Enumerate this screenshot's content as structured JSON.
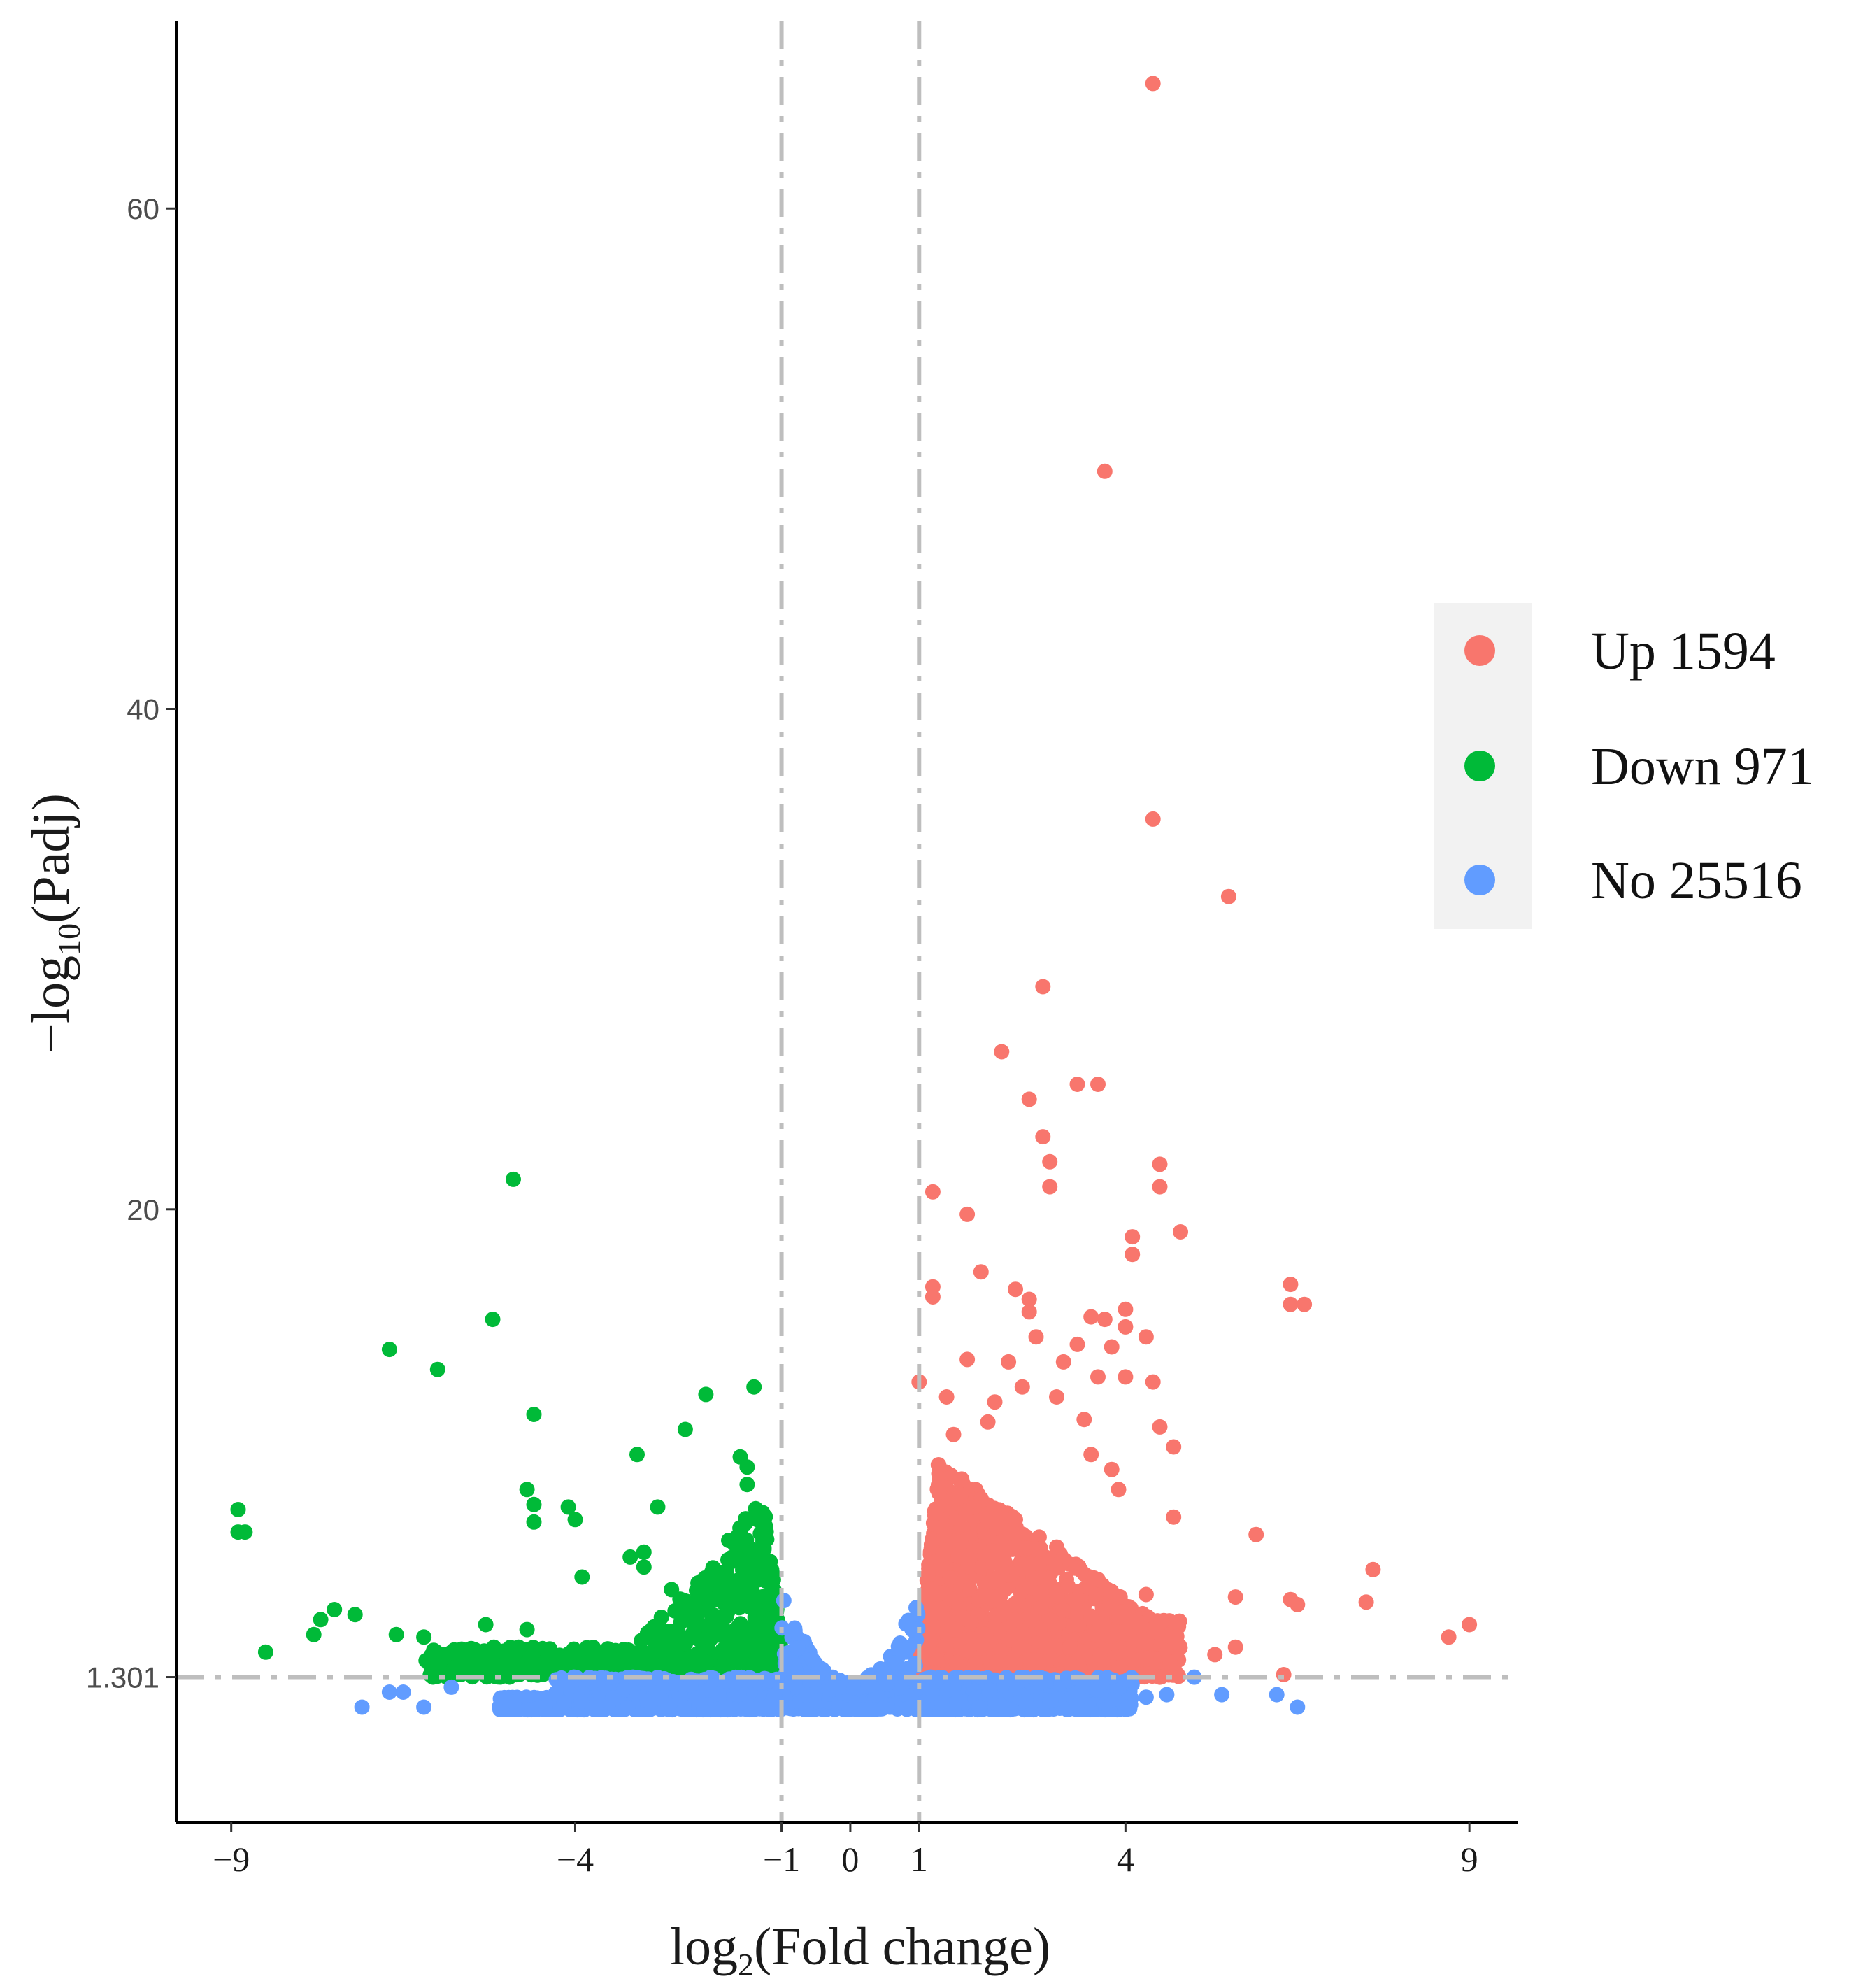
{
  "chart_data": {
    "type": "scatter",
    "title": "",
    "xlabel": {
      "main": "log",
      "sub": "2",
      "rest": "(Fold change)"
    },
    "ylabel": {
      "main": "−log",
      "sub": "10",
      "rest": "(Padj)"
    },
    "xlim": [
      -9.8,
      9.7
    ],
    "ylim": [
      -4.5,
      67.5
    ],
    "x_ticks": [
      {
        "value": -9,
        "label": "−9"
      },
      {
        "value": -4,
        "label": "−4"
      },
      {
        "value": -1,
        "label": "−1"
      },
      {
        "value": 0,
        "label": "0"
      },
      {
        "value": 1,
        "label": "1"
      },
      {
        "value": 4,
        "label": "4"
      },
      {
        "value": 9,
        "label": "9"
      }
    ],
    "y_ticks": [
      {
        "value": 1.301,
        "label": "1.301"
      },
      {
        "value": 20,
        "label": "20"
      },
      {
        "value": 40,
        "label": "40"
      },
      {
        "value": 60,
        "label": "60"
      }
    ],
    "thresholds": {
      "x": [
        -1,
        1
      ],
      "y": 1.301
    },
    "grid": false,
    "legend": {
      "position": "right",
      "entries": [
        {
          "name": "Up",
          "count": "1594",
          "label": "Up 1594",
          "color": "#F8766D"
        },
        {
          "name": "Down",
          "count": "971",
          "label": "Down 971",
          "color": "#00BA38"
        },
        {
          "name": "No",
          "count": "25516",
          "label": "No 25516",
          "color": "#619CFF"
        }
      ]
    },
    "series": [
      {
        "name": "Up",
        "color": "#F8766D",
        "points": [
          [
            4.4,
            65.0
          ],
          [
            3.7,
            49.5
          ],
          [
            4.4,
            35.6
          ],
          [
            5.5,
            32.5
          ],
          [
            2.8,
            28.9
          ],
          [
            2.2,
            26.3
          ],
          [
            2.6,
            24.4
          ],
          [
            3.3,
            25.0
          ],
          [
            3.6,
            25.0
          ],
          [
            2.8,
            22.9
          ],
          [
            2.9,
            21.9
          ],
          [
            4.5,
            21.8
          ],
          [
            2.9,
            20.9
          ],
          [
            4.5,
            20.9
          ],
          [
            1.2,
            20.7
          ],
          [
            1.7,
            19.8
          ],
          [
            4.1,
            18.9
          ],
          [
            4.8,
            19.1
          ],
          [
            4.1,
            18.2
          ],
          [
            1.9,
            17.5
          ],
          [
            6.4,
            17.0
          ],
          [
            6.4,
            16.2
          ],
          [
            6.6,
            16.2
          ],
          [
            1.2,
            16.9
          ],
          [
            1.2,
            16.5
          ],
          [
            2.4,
            16.8
          ],
          [
            2.6,
            16.4
          ],
          [
            2.6,
            15.9
          ],
          [
            3.5,
            15.7
          ],
          [
            3.7,
            15.6
          ],
          [
            4.0,
            16.0
          ],
          [
            4.0,
            15.3
          ],
          [
            4.3,
            14.9
          ],
          [
            2.7,
            14.9
          ],
          [
            3.3,
            14.6
          ],
          [
            3.8,
            14.5
          ],
          [
            1.7,
            14.0
          ],
          [
            2.3,
            13.9
          ],
          [
            3.1,
            13.9
          ],
          [
            3.6,
            13.3
          ],
          [
            4.0,
            13.3
          ],
          [
            4.4,
            13.1
          ],
          [
            2.5,
            12.9
          ],
          [
            3.0,
            12.5
          ],
          [
            1.4,
            12.5
          ],
          [
            2.1,
            12.3
          ],
          [
            1.0,
            13.1
          ],
          [
            3.4,
            11.6
          ],
          [
            4.5,
            11.3
          ],
          [
            4.7,
            10.5
          ],
          [
            1.5,
            11.0
          ],
          [
            2.0,
            11.5
          ],
          [
            3.5,
            10.2
          ],
          [
            3.8,
            9.6
          ],
          [
            3.9,
            8.8
          ],
          [
            4.7,
            7.7
          ],
          [
            5.9,
            7.0
          ],
          [
            7.6,
            5.6
          ],
          [
            7.5,
            4.3
          ],
          [
            6.4,
            4.4
          ],
          [
            6.5,
            4.2
          ],
          [
            5.6,
            4.5
          ],
          [
            8.7,
            2.9
          ],
          [
            9.0,
            3.4
          ],
          [
            5.3,
            2.2
          ],
          [
            5.6,
            2.5
          ],
          [
            4.3,
            2.0
          ],
          [
            6.3,
            1.4
          ],
          [
            4.5,
            1.3
          ],
          [
            1.3,
            9.2
          ],
          [
            1.8,
            8.1
          ],
          [
            2.4,
            7.6
          ],
          [
            3.0,
            6.5
          ],
          [
            1.6,
            6.7
          ],
          [
            2.2,
            5.4
          ],
          [
            3.6,
            5.2
          ],
          [
            4.3,
            4.6
          ]
        ],
        "cloud": {
          "x_range": [
            1.0,
            4.8
          ],
          "y_range": [
            1.3,
            10.5
          ],
          "n": 1500
        }
      },
      {
        "name": "Down",
        "color": "#00BA38",
        "points": [
          [
            -4.9,
            21.2
          ],
          [
            -5.2,
            15.6
          ],
          [
            -6.7,
            14.4
          ],
          [
            -6.0,
            13.6
          ],
          [
            -4.6,
            11.8
          ],
          [
            -1.4,
            12.9
          ],
          [
            -2.1,
            12.6
          ],
          [
            -2.4,
            11.2
          ],
          [
            -3.1,
            10.2
          ],
          [
            -1.6,
            10.1
          ],
          [
            -1.5,
            9.7
          ],
          [
            -1.5,
            9.0
          ],
          [
            -4.7,
            8.8
          ],
          [
            -4.6,
            8.2
          ],
          [
            -4.6,
            7.5
          ],
          [
            -4.1,
            8.1
          ],
          [
            -4.0,
            7.6
          ],
          [
            -2.8,
            8.1
          ],
          [
            -8.9,
            8.0
          ],
          [
            -8.9,
            7.1
          ],
          [
            -8.8,
            7.1
          ],
          [
            -8.5,
            2.3
          ],
          [
            -7.5,
            4.0
          ],
          [
            -7.2,
            3.8
          ],
          [
            -7.8,
            3.0
          ],
          [
            -7.7,
            3.6
          ],
          [
            -6.6,
            3.0
          ],
          [
            -6.2,
            2.9
          ],
          [
            -5.3,
            3.4
          ],
          [
            -4.7,
            3.2
          ],
          [
            -3.9,
            5.3
          ],
          [
            -3.2,
            6.1
          ],
          [
            -3.0,
            6.3
          ],
          [
            -3.0,
            5.7
          ],
          [
            -2.6,
            4.8
          ],
          [
            -2.2,
            4.5
          ],
          [
            -5.9,
            2.1
          ],
          [
            -6.0,
            1.8
          ],
          [
            -5.0,
            1.7
          ]
        ],
        "cloud": {
          "x_range": [
            -6.2,
            -1.0
          ],
          "y_range": [
            1.3,
            9.3
          ],
          "n": 850
        }
      },
      {
        "name": "No",
        "color": "#619CFF",
        "points": [
          [
            -7.1,
            0.1
          ],
          [
            -6.7,
            0.7
          ],
          [
            -6.5,
            0.7
          ],
          [
            -6.2,
            0.1
          ],
          [
            -5.8,
            0.9
          ],
          [
            5.4,
            0.6
          ],
          [
            6.2,
            0.6
          ],
          [
            6.5,
            0.1
          ],
          [
            5.0,
            1.3
          ],
          [
            4.3,
            0.5
          ],
          [
            4.6,
            0.6
          ]
        ],
        "cloud": {
          "x_range": [
            -5.1,
            4.1
          ],
          "y_range": [
            0.0,
            1.3
          ],
          "n": 2200
        }
      }
    ]
  }
}
